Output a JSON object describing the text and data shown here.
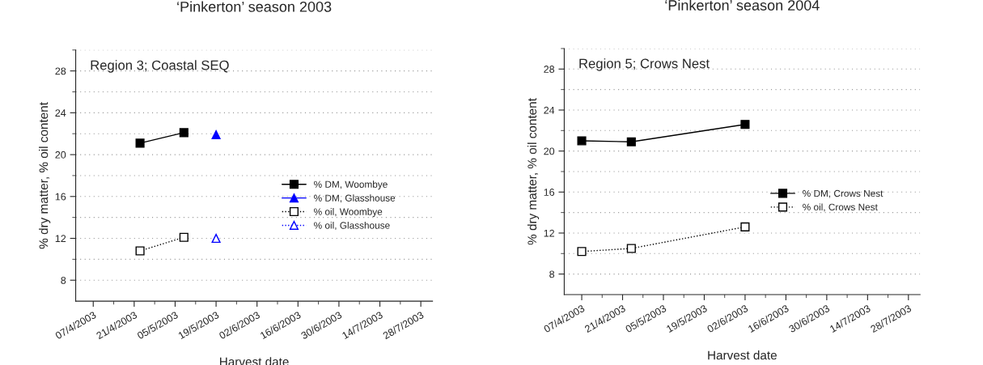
{
  "chart_data": [
    {
      "type": "line",
      "title": "‘Pinkerton’ season 2003",
      "xlabel": "Harvest date",
      "ylabel": "% dry matter, % oil content",
      "annotations": [
        "Region 3; Coastal SEQ"
      ],
      "xlim": [
        "2003-04-01",
        "2003-08-01"
      ],
      "xticks": [
        {
          "value": "2003-04-07",
          "label": "07/4/2003"
        },
        {
          "value": "2003-04-21",
          "label": "21/4/2003"
        },
        {
          "value": "2003-05-05",
          "label": "05/5/2003"
        },
        {
          "value": "2003-05-19",
          "label": "19/5/2003"
        },
        {
          "value": "2003-06-02",
          "label": "02/6/2003"
        },
        {
          "value": "2003-06-16",
          "label": "16/6/2003"
        },
        {
          "value": "2003-06-30",
          "label": "30/6/2003"
        },
        {
          "value": "2003-07-14",
          "label": "14/7/2003"
        },
        {
          "value": "2003-07-28",
          "label": "28/7/2003"
        }
      ],
      "ylim": [
        6,
        30
      ],
      "yticks": [
        8,
        12,
        16,
        20,
        24,
        28
      ],
      "grid": "y",
      "legend": "right",
      "series": [
        {
          "name": "% DM, Woombye",
          "color": "#000000",
          "marker": "square",
          "line_style": "solid",
          "x": [
            "2003-04-23",
            "2003-05-08"
          ],
          "values": [
            21.1,
            22.1
          ]
        },
        {
          "name": "% DM, Glasshouse",
          "color": "#0000ff",
          "marker": "triangle",
          "line_style": "solid",
          "x": [
            "2003-05-19"
          ],
          "values": [
            21.9
          ]
        },
        {
          "name": "% oil, Woombye",
          "color": "#000000",
          "marker": "square_open",
          "line_style": "dotted",
          "x": [
            "2003-04-23",
            "2003-05-08"
          ],
          "values": [
            10.8,
            12.1
          ]
        },
        {
          "name": "% oil, Glasshouse",
          "color": "#0000ff",
          "marker": "triangle_open",
          "line_style": "dotted",
          "x": [
            "2003-05-19"
          ],
          "values": [
            12.0
          ]
        }
      ]
    },
    {
      "type": "line",
      "title": "‘Pinkerton’ season 2004",
      "xlabel": "Harvest date",
      "ylabel": "% dry matter, % oil content",
      "annotations": [
        "Region 5; Crows Nest"
      ],
      "xlim": [
        "2003-04-01",
        "2003-08-01"
      ],
      "xticks": [
        {
          "value": "2003-04-07",
          "label": "07/4/2003"
        },
        {
          "value": "2003-04-21",
          "label": "21/4/2003"
        },
        {
          "value": "2003-05-05",
          "label": "05/5/2003"
        },
        {
          "value": "2003-05-19",
          "label": "19/5/2003"
        },
        {
          "value": "2003-06-02",
          "label": "02/6/2003"
        },
        {
          "value": "2003-06-16",
          "label": "16/6/2003"
        },
        {
          "value": "2003-06-30",
          "label": "30/6/2003"
        },
        {
          "value": "2003-07-14",
          "label": "14/7/2003"
        },
        {
          "value": "2003-07-28",
          "label": "28/7/2003"
        }
      ],
      "ylim": [
        6,
        30
      ],
      "yticks": [
        8,
        12,
        16,
        20,
        24,
        28
      ],
      "grid": "y",
      "legend": "right",
      "series": [
        {
          "name": "% DM, Crows Nest",
          "color": "#000000",
          "marker": "square",
          "line_style": "solid",
          "x": [
            "2003-04-07",
            "2003-04-24",
            "2003-06-02"
          ],
          "values": [
            21.0,
            20.9,
            22.6
          ]
        },
        {
          "name": "% oil, Crows Nest",
          "color": "#000000",
          "marker": "square_open",
          "line_style": "dotted",
          "x": [
            "2003-04-07",
            "2003-04-24",
            "2003-06-02"
          ],
          "values": [
            10.2,
            10.5,
            12.6
          ]
        }
      ]
    }
  ]
}
